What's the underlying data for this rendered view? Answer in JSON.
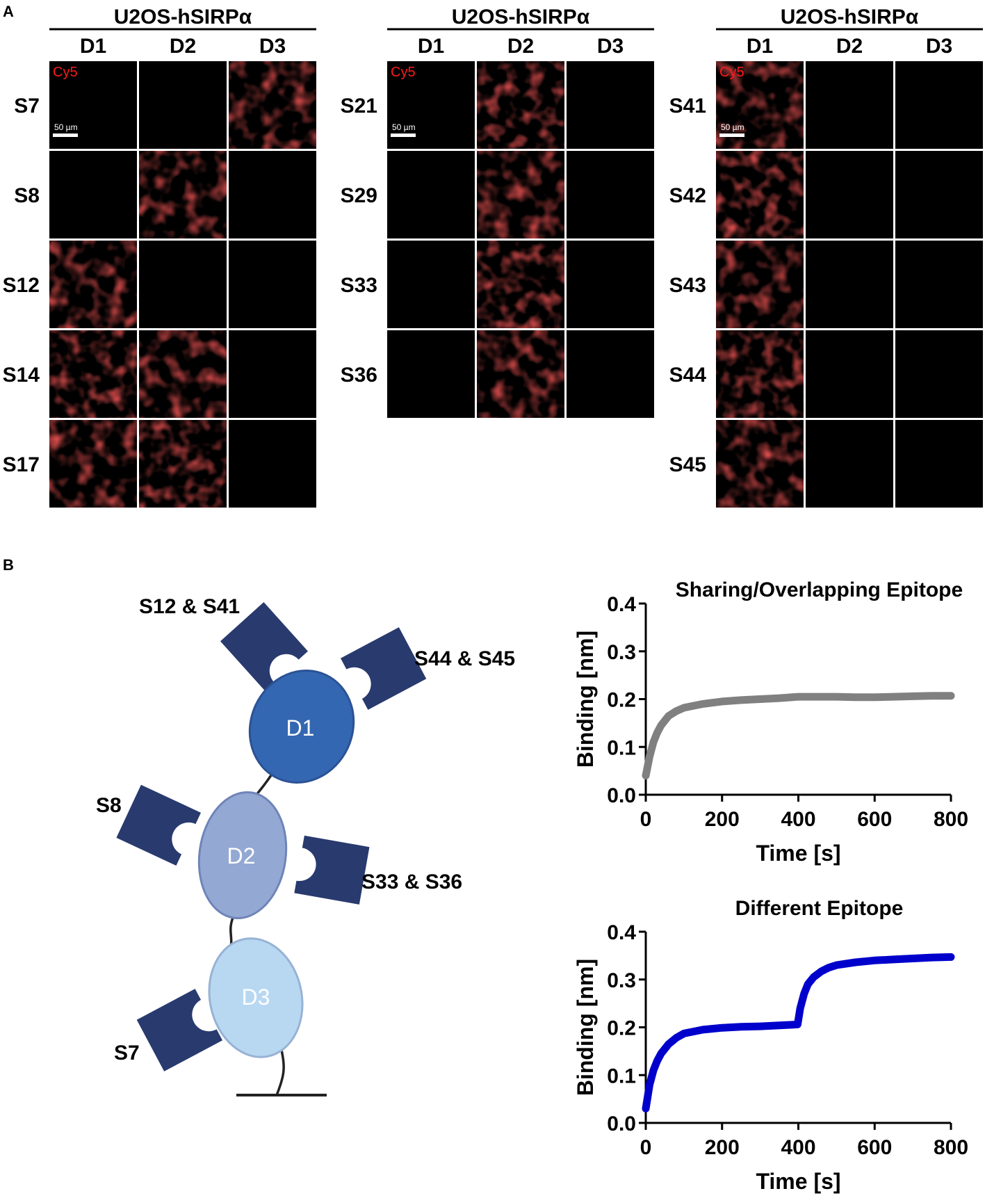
{
  "panel_a": {
    "label": "A",
    "cell_line": "U2OS-hSIRPα",
    "domains": [
      "D1",
      "D2",
      "D3"
    ],
    "channel_label": "Cy5",
    "scale_bar_label": "50 µm",
    "channel_color": "#ff1a1a",
    "groups": [
      {
        "rows": [
          {
            "clone": "S7",
            "positive": [
              false,
              false,
              true
            ]
          },
          {
            "clone": "S8",
            "positive": [
              false,
              true,
              false
            ]
          },
          {
            "clone": "S12",
            "positive": [
              true,
              false,
              false
            ]
          },
          {
            "clone": "S14",
            "positive": [
              true,
              true,
              false
            ]
          },
          {
            "clone": "S17",
            "positive": [
              true,
              true,
              false
            ]
          }
        ]
      },
      {
        "rows": [
          {
            "clone": "S21",
            "positive": [
              false,
              true,
              false
            ]
          },
          {
            "clone": "S29",
            "positive": [
              false,
              true,
              false
            ]
          },
          {
            "clone": "S33",
            "positive": [
              false,
              true,
              false
            ]
          },
          {
            "clone": "S36",
            "positive": [
              false,
              true,
              false
            ]
          }
        ]
      },
      {
        "rows": [
          {
            "clone": "S41",
            "positive": [
              true,
              false,
              false
            ]
          },
          {
            "clone": "S42",
            "positive": [
              true,
              false,
              false
            ]
          },
          {
            "clone": "S43",
            "positive": [
              true,
              false,
              false
            ]
          },
          {
            "clone": "S44",
            "positive": [
              true,
              false,
              false
            ]
          },
          {
            "clone": "S45",
            "positive": [
              true,
              false,
              false
            ]
          }
        ]
      }
    ]
  },
  "panel_b": {
    "label": "B",
    "diagram": {
      "domains": [
        {
          "label": "D1",
          "color": "#3467b2"
        },
        {
          "label": "D2",
          "color": "#94a8d4"
        },
        {
          "label": "D3",
          "color": "#b8d8f2"
        }
      ],
      "antibody_color": "#283a6e",
      "antibodies": [
        "S12 & S41",
        "S44 & S45",
        "S8",
        "S33 & S36",
        "S7"
      ]
    }
  },
  "chart_data": [
    {
      "type": "line",
      "title": "Sharing/Overlapping Epitope",
      "xlabel": "Time [s]",
      "ylabel": "Binding [nm]",
      "xlim": [
        0,
        800
      ],
      "ylim": [
        0,
        0.4
      ],
      "xticks": [
        "0",
        "200",
        "400",
        "600",
        "800"
      ],
      "yticks": [
        "0.0",
        "0.1",
        "0.2",
        "0.3",
        "0.4"
      ],
      "color": "#808080",
      "x": [
        0,
        10,
        20,
        30,
        40,
        60,
        80,
        100,
        150,
        200,
        250,
        300,
        350,
        400,
        450,
        500,
        550,
        600,
        650,
        700,
        750,
        800
      ],
      "y": [
        0.04,
        0.08,
        0.11,
        0.13,
        0.145,
        0.165,
        0.175,
        0.182,
        0.19,
        0.195,
        0.198,
        0.2,
        0.202,
        0.205,
        0.205,
        0.205,
        0.204,
        0.204,
        0.205,
        0.206,
        0.207,
        0.207
      ]
    },
    {
      "type": "line",
      "title": "Different Epitope",
      "xlabel": "Time [s]",
      "ylabel": "Binding [nm]",
      "xlim": [
        0,
        800
      ],
      "ylim": [
        0,
        0.4
      ],
      "xticks": [
        "0",
        "200",
        "400",
        "600",
        "800"
      ],
      "yticks": [
        "0.0",
        "0.1",
        "0.2",
        "0.3",
        "0.4"
      ],
      "color": "#0000cc",
      "x": [
        0,
        10,
        20,
        30,
        40,
        60,
        80,
        100,
        150,
        200,
        250,
        300,
        350,
        398,
        405,
        415,
        425,
        440,
        460,
        480,
        500,
        550,
        600,
        650,
        700,
        750,
        800
      ],
      "y": [
        0.03,
        0.08,
        0.11,
        0.13,
        0.145,
        0.165,
        0.178,
        0.187,
        0.195,
        0.199,
        0.201,
        0.202,
        0.204,
        0.206,
        0.24,
        0.27,
        0.29,
        0.305,
        0.317,
        0.325,
        0.33,
        0.336,
        0.34,
        0.342,
        0.344,
        0.346,
        0.347
      ]
    }
  ]
}
